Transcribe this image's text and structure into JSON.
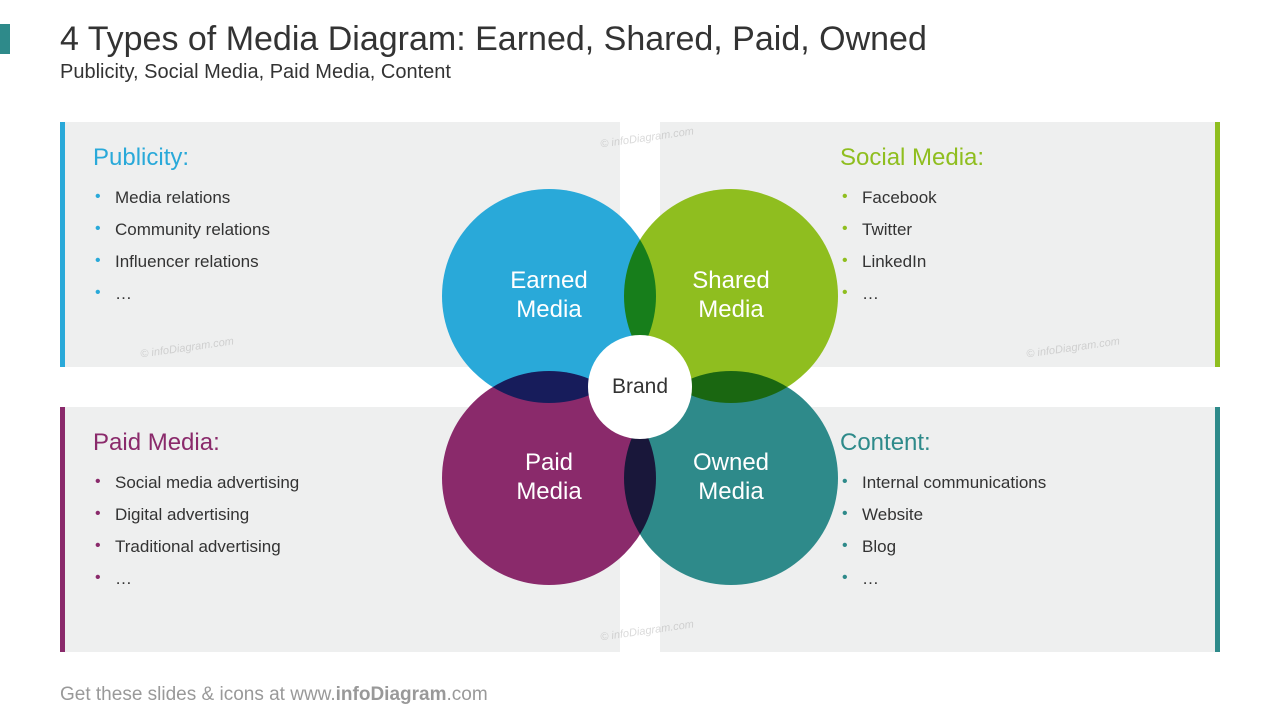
{
  "header": {
    "title": "4 Types of Media Diagram: Earned, Shared, Paid, Owned",
    "subtitle": "Publicity, Social Media, Paid Media, Content"
  },
  "side_tab_color": "#2e8a8a",
  "quads": {
    "tl": {
      "title": "Publicity:",
      "color": "#29a9d9",
      "items": [
        "Media relations",
        "Community relations",
        "Influencer relations",
        "…"
      ]
    },
    "tr": {
      "title": "Social Media:",
      "color": "#8fbe1f",
      "items": [
        "Facebook",
        "Twitter",
        "LinkedIn",
        "…"
      ]
    },
    "bl": {
      "title": "Paid Media:",
      "color": "#8a2a6b",
      "items": [
        "Social media advertising",
        "Digital advertising",
        "Traditional advertising",
        "…"
      ]
    },
    "br": {
      "title": "Content:",
      "color": "#2e8a8a",
      "items": [
        "Internal communications",
        "Website",
        "Blog",
        "…"
      ]
    }
  },
  "venn": {
    "tl": {
      "label_l1": "Earned",
      "label_l2": "Media",
      "color": "#29a9d9"
    },
    "tr": {
      "label_l1": "Shared",
      "label_l2": "Media",
      "color": "#8fbe1f"
    },
    "bl": {
      "label_l1": "Paid",
      "label_l2": "Media",
      "color": "#8a2a6b"
    },
    "br": {
      "label_l1": "Owned",
      "label_l2": "Media",
      "color": "#2e8a8a"
    },
    "center": "Brand"
  },
  "footer": {
    "prefix": "Get these slides & icons at www.",
    "bold": "infoDiagram",
    "suffix": ".com"
  },
  "watermark": "© infoDiagram.com"
}
